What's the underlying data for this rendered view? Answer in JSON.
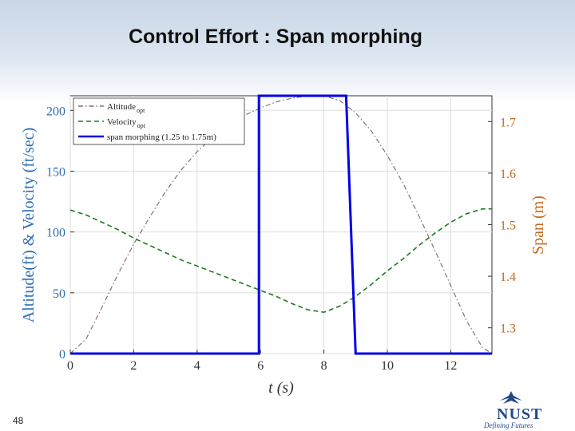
{
  "slide": {
    "title": "Control Effort : Span morphing",
    "number": "48",
    "logo_text": "NUST",
    "logo_motto": "Defining Futures"
  },
  "colors": {
    "altitude": "#8b6d6d",
    "velocity": "#1f7a1f",
    "span": "#0000e6",
    "left_axis": "#2a6db5",
    "right_axis": "#c46a1e"
  },
  "chart_data": {
    "type": "line",
    "xlabel": "t  (s)",
    "ylabel_left": "Altitude(ft) & Velocity (ft/sec)",
    "ylabel_right": "Span (m)",
    "xlim": [
      0,
      13.3
    ],
    "ylim_left": [
      0,
      212
    ],
    "ylim_right": [
      1.25,
      1.75
    ],
    "x_ticks": [
      "0",
      "2",
      "4",
      "6",
      "8",
      "10",
      "12"
    ],
    "y_left_ticks": [
      "0",
      "50",
      "100",
      "150",
      "200"
    ],
    "y_right_ticks": [
      "1.3",
      "1.4",
      "1.5",
      "1.6",
      "1.7"
    ],
    "legend": [
      {
        "label": "Altitude",
        "sub": "opt"
      },
      {
        "label": "Velocity",
        "sub": "opt"
      },
      {
        "label": "span morphing (1.25 to 1.75m)",
        "sub": ""
      }
    ],
    "legend_position": "top-left",
    "series": [
      {
        "name": "Altitude",
        "axis": "left",
        "style": "dashdot",
        "x": [
          0,
          0.5,
          1,
          1.5,
          2,
          2.5,
          3,
          3.5,
          4,
          4.5,
          5,
          5.5,
          6,
          6.5,
          7,
          7.5,
          8,
          8.5,
          9,
          9.5,
          10,
          10.5,
          11,
          11.5,
          12,
          12.5,
          13,
          13.3
        ],
        "y": [
          0,
          12,
          38,
          65,
          90,
          112,
          133,
          151,
          166,
          178,
          188,
          196,
          202,
          207,
          210,
          212,
          212,
          208,
          198,
          183,
          163,
          140,
          113,
          85,
          56,
          27,
          5,
          0
        ]
      },
      {
        "name": "Velocity",
        "axis": "left",
        "style": "dashed",
        "x": [
          0,
          0.5,
          1,
          1.5,
          2,
          2.5,
          3,
          3.5,
          4,
          4.5,
          5,
          5.5,
          6,
          6.5,
          7,
          7.5,
          8,
          8.5,
          9,
          9.5,
          10,
          10.5,
          11,
          11.5,
          12,
          12.5,
          13,
          13.3
        ],
        "y": [
          118,
          114,
          108,
          102,
          95,
          89,
          83,
          77,
          72,
          67,
          62,
          57,
          52,
          47,
          41,
          36,
          34,
          39,
          47,
          57,
          68,
          78,
          89,
          99,
          108,
          115,
          119,
          119
        ]
      },
      {
        "name": "span morphing (1.25 to 1.75m)",
        "axis": "right",
        "style": "solid",
        "x": [
          0,
          5.95,
          5.95,
          8.7,
          9.0,
          13.3
        ],
        "y": [
          1.25,
          1.25,
          1.75,
          1.75,
          1.25,
          1.25
        ]
      }
    ]
  }
}
